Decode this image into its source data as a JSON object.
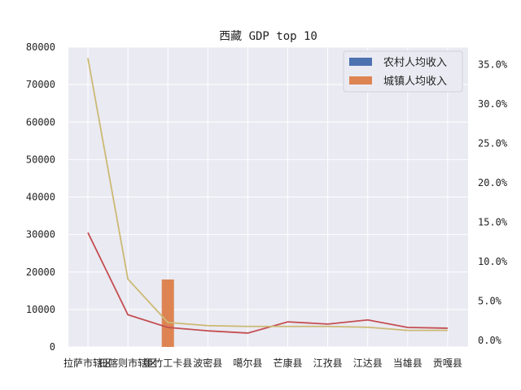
{
  "chart_data": {
    "type": "bar",
    "title": "西藏 GDP top 10",
    "categories": [
      "拉萨市辖区",
      "日喀则市辖区",
      "墨竹工卡县",
      "波密县",
      "噶尔县",
      "芒康县",
      "江孜县",
      "江达县",
      "当雄县",
      "贡嘎县"
    ],
    "series": [
      {
        "name": "农村人均收入",
        "type": "bar",
        "axis": "left",
        "color": "#4c72b0",
        "values": [
          0,
          0,
          0,
          0,
          0,
          0,
          0,
          0,
          0,
          0
        ]
      },
      {
        "name": "城镇人均收入",
        "type": "bar",
        "axis": "left",
        "color": "#dd8452",
        "values": [
          0,
          0,
          18000,
          0,
          0,
          0,
          0,
          0,
          0,
          0
        ]
      },
      {
        "type": "line",
        "axis": "left",
        "color": "#c44e52",
        "values": [
          30500,
          8600,
          5200,
          4300,
          3700,
          6700,
          6100,
          7200,
          5200,
          5000
        ]
      },
      {
        "type": "line",
        "axis": "right",
        "color": "#ccb974",
        "values": [
          0.358,
          0.078,
          0.023,
          0.019,
          0.018,
          0.018,
          0.018,
          0.017,
          0.013,
          0.013
        ]
      }
    ],
    "ylim": [
      0,
      80000
    ],
    "yticks": [
      "0",
      "10000",
      "20000",
      "30000",
      "40000",
      "50000",
      "60000",
      "70000",
      "80000"
    ],
    "y2lim": [
      -0.008,
      0.372
    ],
    "y2ticks": [
      "0.0%",
      "5.0%",
      "10.0%",
      "15.0%",
      "20.0%",
      "25.0%",
      "30.0%",
      "35.0%"
    ],
    "y2tick_values": [
      0,
      0.05,
      0.1,
      0.15,
      0.2,
      0.25,
      0.3,
      0.35
    ],
    "grid": true,
    "legend_position": "top-right"
  }
}
